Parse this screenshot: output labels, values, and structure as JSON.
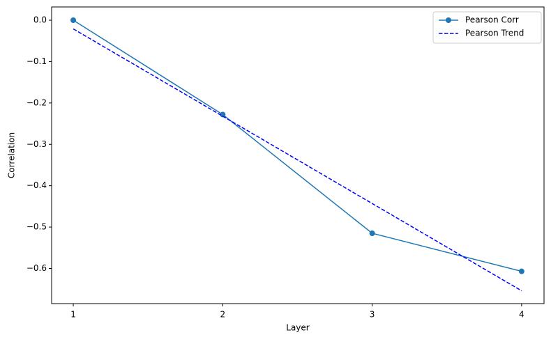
{
  "chart_data": {
    "type": "line",
    "xlabel": "Layer",
    "ylabel": "Correlation",
    "x": [
      1,
      2,
      3,
      4
    ],
    "series": [
      {
        "name": "Pearson Corr",
        "color": "#1f77b4",
        "style": "solid",
        "marker": "circle",
        "values": [
          0.0,
          -0.228,
          -0.515,
          -0.607
        ]
      },
      {
        "name": "Pearson Trend",
        "color": "#0000ff",
        "style": "dashed",
        "marker": "none",
        "values": [
          -0.021,
          -0.232,
          -0.443,
          -0.654
        ]
      }
    ],
    "xlim": [
      0.855,
      4.15
    ],
    "xticks": [
      1,
      2,
      3,
      4
    ],
    "ylim": [
      -0.685,
      0.032
    ],
    "yticks": [
      {
        "value": 0.0,
        "label": "0.0"
      },
      {
        "value": -0.1,
        "label": "−0.1"
      },
      {
        "value": -0.2,
        "label": "−0.2"
      },
      {
        "value": -0.3,
        "label": "−0.3"
      },
      {
        "value": -0.4,
        "label": "−0.4"
      },
      {
        "value": -0.5,
        "label": "−0.5"
      },
      {
        "value": -0.6,
        "label": "−0.6"
      }
    ],
    "grid": false,
    "legend": "upper right"
  }
}
